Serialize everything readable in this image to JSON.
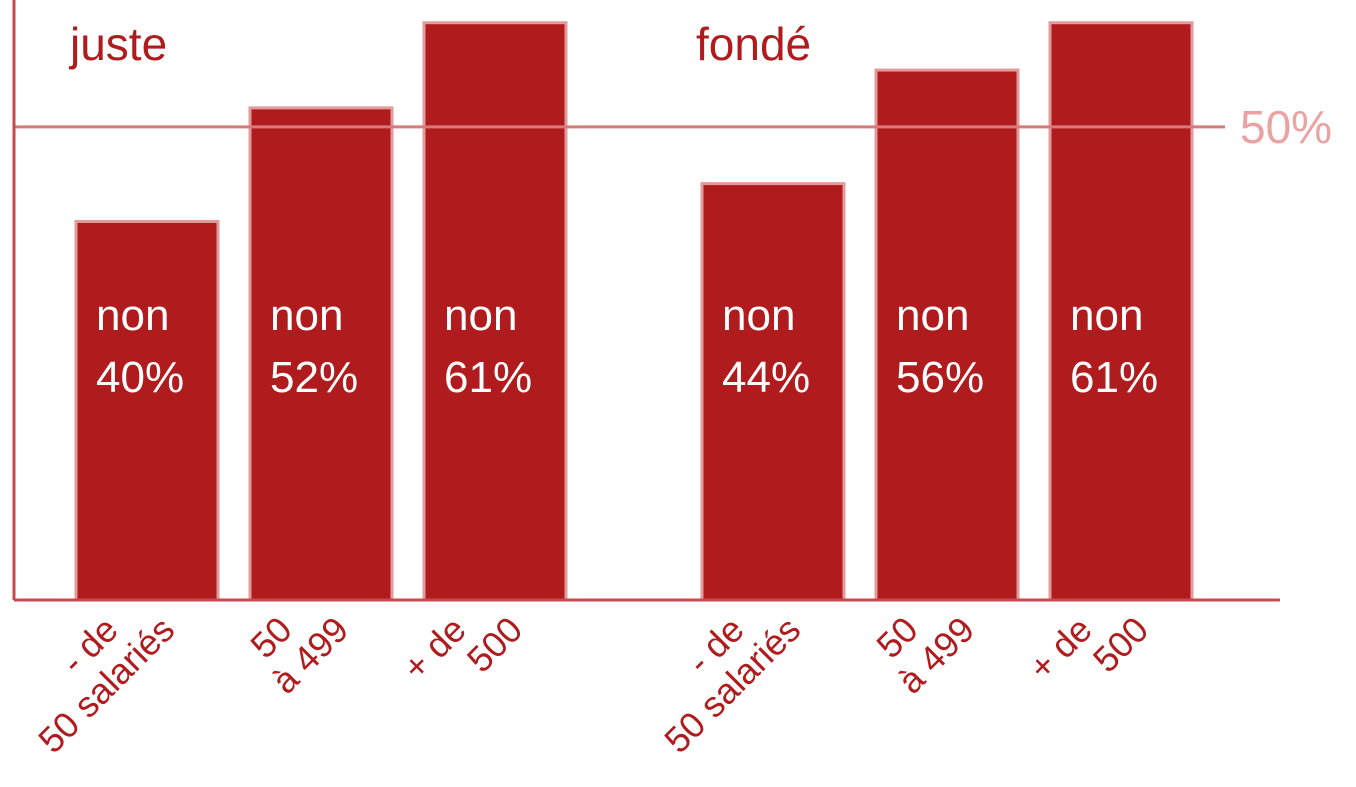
{
  "chart_data": {
    "type": "bar",
    "categories": [
      [
        "- de",
        "50 salariés"
      ],
      [
        "50",
        "à 499"
      ],
      [
        "+ de",
        "500"
      ]
    ],
    "groups": [
      {
        "title": "juste",
        "values": [
          40,
          52,
          61
        ],
        "value_labels": [
          [
            "non",
            "40%"
          ],
          [
            "non",
            "52%"
          ],
          [
            "non",
            "61%"
          ]
        ]
      },
      {
        "title": "fondé",
        "values": [
          44,
          56,
          61
        ],
        "value_labels": [
          [
            "non",
            "44%"
          ],
          [
            "non",
            "56%"
          ],
          [
            "non",
            "61%"
          ]
        ]
      }
    ],
    "color": "#b01c1e",
    "ylim": [
      0,
      63.4
    ],
    "yticks": [
      {
        "value": 50,
        "label": "50%"
      }
    ]
  }
}
